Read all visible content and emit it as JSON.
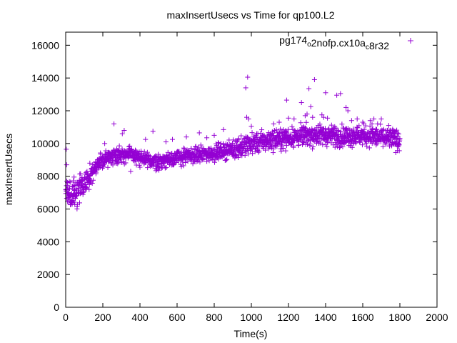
{
  "chart_data": {
    "type": "scatter",
    "title": "maxInsertUsecs vs Time for qp100.L2",
    "xlabel": "Time(s)",
    "ylabel": "maxInsertUsecs",
    "xlim": [
      0,
      2000
    ],
    "ylim": [
      0,
      16800
    ],
    "xticks": [
      0,
      200,
      400,
      600,
      800,
      1000,
      1200,
      1400,
      1600,
      1800,
      2000
    ],
    "yticks": [
      0,
      2000,
      4000,
      6000,
      8000,
      10000,
      12000,
      14000,
      16000
    ],
    "grid": false,
    "legend_position": "top-right",
    "series": [
      {
        "name": "pg174o2nofp.cx10ac8r32",
        "legend_parts": [
          {
            "text": "pg174",
            "sub": false
          },
          {
            "text": "o",
            "sub": true
          },
          {
            "text": "2nofp.cx10a",
            "sub": false
          },
          {
            "text": "c",
            "sub": true
          },
          {
            "text": "8r32",
            "sub": false
          }
        ],
        "color": "#9400d3",
        "marker": "+",
        "approx_sample_interval": 1,
        "trend": [
          [
            0,
            7000
          ],
          [
            25,
            6800
          ],
          [
            60,
            6900
          ],
          [
            100,
            7600
          ],
          [
            150,
            8400
          ],
          [
            200,
            9000
          ],
          [
            260,
            9300
          ],
          [
            350,
            9350
          ],
          [
            420,
            9000
          ],
          [
            500,
            8900
          ],
          [
            560,
            9050
          ],
          [
            600,
            9150
          ],
          [
            700,
            9300
          ],
          [
            780,
            9400
          ],
          [
            860,
            9550
          ],
          [
            950,
            9800
          ],
          [
            1000,
            10000
          ],
          [
            1100,
            10200
          ],
          [
            1200,
            10350
          ],
          [
            1300,
            10500
          ],
          [
            1400,
            10500
          ],
          [
            1500,
            10450
          ],
          [
            1600,
            10500
          ],
          [
            1700,
            10350
          ],
          [
            1800,
            10200
          ]
        ],
        "outliers": [
          [
            3,
            9650
          ],
          [
            5,
            8700
          ],
          [
            10,
            6450
          ],
          [
            45,
            7950
          ],
          [
            80,
            8150
          ],
          [
            130,
            8800
          ],
          [
            200,
            8650
          ],
          [
            210,
            10000
          ],
          [
            260,
            11200
          ],
          [
            305,
            10600
          ],
          [
            315,
            10800
          ],
          [
            350,
            8300
          ],
          [
            400,
            8550
          ],
          [
            430,
            10250
          ],
          [
            470,
            10750
          ],
          [
            500,
            8550
          ],
          [
            520,
            9050
          ],
          [
            540,
            10100
          ],
          [
            575,
            10250
          ],
          [
            650,
            10400
          ],
          [
            720,
            10650
          ],
          [
            760,
            10350
          ],
          [
            800,
            10500
          ],
          [
            850,
            10850
          ],
          [
            930,
            10300
          ],
          [
            970,
            13400
          ],
          [
            980,
            14050
          ],
          [
            975,
            11600
          ],
          [
            985,
            11500
          ],
          [
            1000,
            11050
          ],
          [
            1120,
            11200
          ],
          [
            1150,
            11300
          ],
          [
            1190,
            12650
          ],
          [
            1200,
            11550
          ],
          [
            1230,
            11500
          ],
          [
            1270,
            12500
          ],
          [
            1290,
            11700
          ],
          [
            1300,
            11800
          ],
          [
            1310,
            13350
          ],
          [
            1320,
            12250
          ],
          [
            1330,
            11600
          ],
          [
            1340,
            13900
          ],
          [
            1360,
            11100
          ],
          [
            1380,
            11750
          ],
          [
            1390,
            11600
          ],
          [
            1400,
            13100
          ],
          [
            1410,
            11550
          ],
          [
            1460,
            12950
          ],
          [
            1480,
            13050
          ],
          [
            1510,
            12200
          ],
          [
            1520,
            12000
          ],
          [
            1540,
            11400
          ],
          [
            1570,
            11500
          ],
          [
            1600,
            11300
          ],
          [
            1640,
            11400
          ],
          [
            1650,
            11200
          ],
          [
            1660,
            11500
          ],
          [
            1680,
            11200
          ],
          [
            1700,
            11500
          ],
          [
            1740,
            11100
          ],
          [
            1760,
            10800
          ]
        ]
      }
    ]
  }
}
